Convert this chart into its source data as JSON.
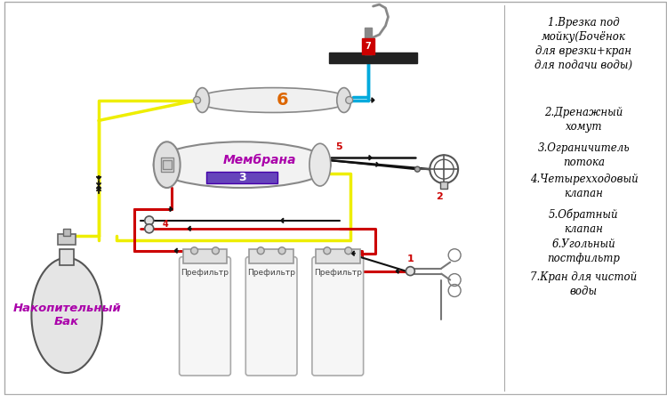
{
  "background_color": "#ffffff",
  "legend_items": [
    "1.Врезка под\nмойку(Бочёнок\nдля врезки+кран\nдля подачи воды)",
    "2.Дренажный\nхомут",
    "3.Ограничитель\nпотока",
    "4.Четырехходовый\nклапан",
    "5.Обратный\nклапан",
    "6.Угольный\nпостфильтр",
    "7.Кран для чистой\nводы"
  ],
  "tank_label": "Накопительный\nБак",
  "membrane_label": "Мембрана",
  "prefilter_label": "Префильтр",
  "yellow": "#eeee00",
  "red": "#cc0000",
  "blue": "#00aadd",
  "black": "#111111",
  "gray_dark": "#444444",
  "gray_mid": "#888888",
  "gray_light": "#cccccc",
  "purple": "#aa00aa",
  "violet_fill": "#6644bb",
  "text_color": "#000000"
}
